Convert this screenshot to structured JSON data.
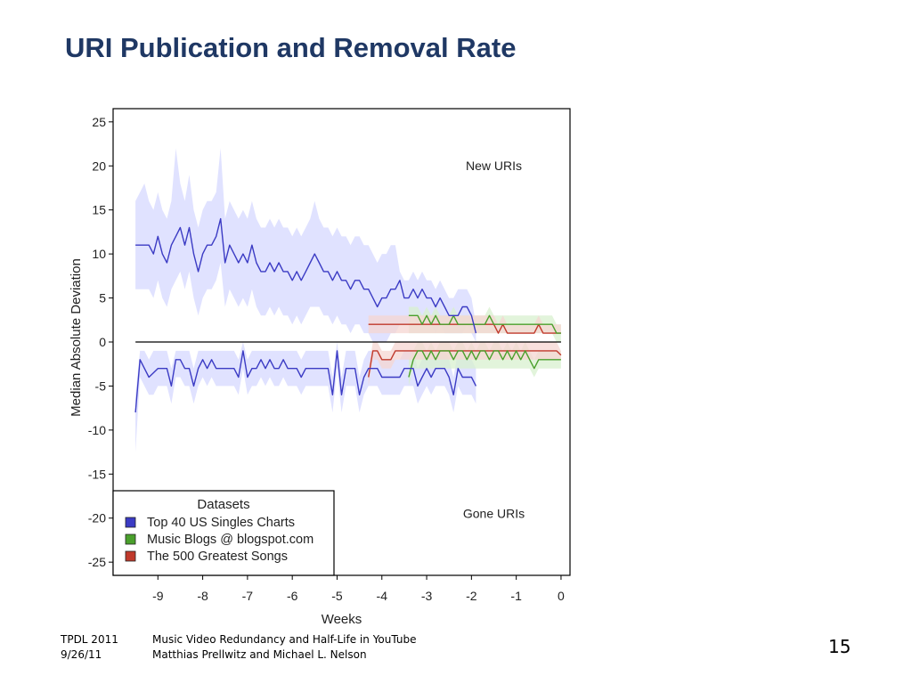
{
  "slide": {
    "title": "URI Publication and Removal Rate",
    "footer_left": [
      "TPDL 2011",
      "9/26/11"
    ],
    "footer_mid": [
      "Music Video Redundancy and Half-Life in YouTube",
      "Matthias Prellwitz and Michael L. Nelson"
    ],
    "page_number": "15"
  },
  "chart_data": {
    "type": "line",
    "title": "",
    "xlabel": "Weeks",
    "ylabel": "Median Absolute Deviation",
    "xlim": [
      -10,
      0.2
    ],
    "ylim": [
      -26.5,
      26.5
    ],
    "x_ticks": [
      -9,
      -8,
      -7,
      -6,
      -5,
      -4,
      -3,
      -2,
      -1,
      0
    ],
    "y_ticks": [
      -25,
      -20,
      -15,
      -10,
      -5,
      0,
      5,
      10,
      15,
      20,
      25
    ],
    "annotations": [
      "New URIs",
      "Gone URIs"
    ],
    "legend": {
      "title": "Datasets",
      "placement": "bottom-left"
    },
    "series": [
      {
        "name": "Top 40 US Singles Charts",
        "color": "#3b3bc4",
        "band_color": "#d6d8ff",
        "x_start": -9.5,
        "x_step": 0.1,
        "new": [
          11,
          11,
          11,
          11,
          10,
          12,
          10,
          9,
          11,
          12,
          13,
          11,
          13,
          10,
          8,
          10,
          11,
          11,
          12,
          14,
          9,
          11,
          10,
          9,
          10,
          9,
          11,
          9,
          8,
          8,
          9,
          8,
          9,
          8,
          8,
          7,
          8,
          7,
          8,
          9,
          10,
          9,
          8,
          8,
          7,
          8,
          7,
          7,
          6,
          7,
          7,
          6,
          6,
          5,
          4,
          5,
          5,
          6,
          6,
          7,
          5,
          5,
          6,
          5,
          6,
          5,
          5,
          4,
          5,
          4,
          3,
          3,
          3,
          4,
          4,
          3,
          1
        ],
        "new_hi": [
          16,
          17,
          18,
          16,
          15,
          17,
          15,
          14,
          16,
          22,
          18,
          16,
          19,
          15,
          13,
          15,
          16,
          16,
          17,
          22,
          14,
          16,
          15,
          14,
          15,
          14,
          16,
          14,
          13,
          13,
          14,
          13,
          14,
          13,
          13,
          12,
          13,
          12,
          13,
          14,
          16,
          14,
          13,
          13,
          12,
          13,
          12,
          12,
          11,
          12,
          12,
          11,
          11,
          10,
          9,
          10,
          10,
          11,
          11,
          8,
          7,
          7,
          8,
          7,
          8,
          7,
          7,
          6,
          7,
          6,
          5,
          5,
          6,
          6,
          6,
          5,
          2
        ],
        "new_lo": [
          6,
          6,
          6,
          6,
          5,
          7,
          5,
          4,
          6,
          7,
          8,
          6,
          8,
          5,
          3,
          5,
          6,
          6,
          7,
          9,
          4,
          6,
          5,
          4,
          5,
          4,
          6,
          4,
          3,
          3,
          4,
          3,
          4,
          3,
          3,
          2,
          3,
          2,
          3,
          4,
          4,
          4,
          3,
          3,
          2,
          3,
          2,
          2,
          1,
          2,
          2,
          1,
          1,
          0,
          0,
          0,
          0,
          1,
          1,
          2,
          2,
          2,
          3,
          2,
          3,
          2,
          2,
          1,
          2,
          1,
          1,
          1,
          1,
          1,
          2,
          1,
          0
        ],
        "gone": [
          -8,
          -2,
          -3,
          -4,
          -3.5,
          -3,
          -3,
          -3,
          -5,
          -2,
          -2,
          -3,
          -3,
          -5,
          -3,
          -2,
          -3,
          -2,
          -3,
          -3,
          -3,
          -3,
          -3,
          -4,
          -1,
          -4,
          -3,
          -3,
          -2,
          -3,
          -2,
          -3,
          -3,
          -2,
          -3,
          -3,
          -3,
          -4,
          -3,
          -3,
          -3,
          -3,
          -3,
          -3,
          -6,
          -1,
          -6,
          -3,
          -3,
          -3,
          -6,
          -4,
          -3,
          -3,
          -3,
          -4,
          -4,
          -4,
          -4,
          -4,
          -3,
          -3,
          -3,
          -5,
          -4,
          -3,
          -4,
          -3,
          -3,
          -3,
          -4,
          -6,
          -3,
          -4,
          -4,
          -4,
          -5
        ],
        "gone_hi": [
          -6,
          -1,
          -1,
          -2,
          -1,
          -1,
          -1,
          -1,
          -3,
          -1,
          -1,
          -1,
          -1,
          -3,
          -1,
          -1,
          -1,
          -1,
          -1,
          -1,
          -1,
          -1,
          -1,
          -2,
          0,
          -2,
          -1,
          -1,
          -1,
          -1,
          -1,
          -1,
          -1,
          -1,
          -1,
          -1,
          -1,
          -2,
          -1,
          -1,
          -1,
          -1,
          -1,
          -1,
          -4,
          0,
          -4,
          -1,
          -1,
          -1,
          -4,
          -2,
          -1,
          -1,
          -1,
          -2,
          -2,
          -2,
          -2,
          -2,
          -1,
          -1,
          -1,
          -3,
          -2,
          -1,
          -2,
          -1,
          -1,
          -1,
          -2,
          -4,
          -1,
          -2,
          -2,
          -2,
          -3
        ],
        "gone_lo": [
          -12.5,
          -4,
          -5,
          -6,
          -6,
          -5,
          -5,
          -5,
          -7,
          -4,
          -4,
          -5,
          -5,
          -7,
          -5,
          -4,
          -5,
          -4,
          -5,
          -5,
          -5,
          -5,
          -5,
          -6,
          -3,
          -6,
          -5,
          -5,
          -4,
          -5,
          -4,
          -5,
          -5,
          -4,
          -5,
          -5,
          -5,
          -6,
          -5,
          -5,
          -5,
          -5,
          -5,
          -5,
          -8,
          -3,
          -8,
          -5,
          -5,
          -5,
          -8,
          -6,
          -5,
          -5,
          -5,
          -6,
          -6,
          -6,
          -6,
          -6,
          -5,
          -5,
          -5,
          -7,
          -6,
          -5,
          -6,
          -5,
          -5,
          -5,
          -6,
          -8,
          -5,
          -6,
          -6,
          -6,
          -7
        ]
      },
      {
        "name": "Music Blogs @ blogspot.com",
        "color": "#4aa02c",
        "band_color": "#d8f0cf",
        "x_start": -3.4,
        "x_step": 0.1,
        "new": [
          3,
          3,
          3,
          2,
          3,
          2,
          3,
          2,
          2,
          2,
          3,
          2,
          2,
          2,
          2,
          2,
          2,
          2,
          3,
          2,
          2,
          2,
          2,
          2,
          2,
          2,
          2,
          2,
          2,
          2,
          2,
          2,
          2,
          1,
          1
        ],
        "new_hi": [
          4,
          4,
          4,
          3,
          4,
          3,
          4,
          3,
          3,
          3,
          4,
          3,
          3,
          3,
          3,
          3,
          3,
          3,
          4,
          3,
          3,
          3,
          3,
          3,
          3,
          3,
          3,
          3,
          3,
          3,
          3,
          3,
          3,
          2,
          2
        ],
        "new_lo": [
          1,
          1,
          1,
          1,
          1,
          1,
          1,
          1,
          1,
          1,
          1,
          1,
          1,
          1,
          1,
          1,
          1,
          1,
          1,
          1,
          1,
          1,
          1,
          1,
          1,
          1,
          1,
          1,
          1,
          1,
          1,
          1,
          1,
          0,
          0
        ],
        "gone": [
          -4,
          -2,
          -1,
          -1,
          -2,
          -1,
          -2,
          -1,
          -1,
          -1,
          -2,
          -1,
          -1,
          -2,
          -1,
          -2,
          -1,
          -1,
          -2,
          -1,
          -1,
          -2,
          -1,
          -2,
          -1,
          -2,
          -1,
          -2,
          -3,
          -2,
          -2,
          -2,
          -2,
          -2,
          -2
        ],
        "gone_hi": [
          -2,
          -1,
          0,
          0,
          -1,
          0,
          -1,
          0,
          0,
          0,
          -1,
          0,
          0,
          -1,
          0,
          -1,
          0,
          0,
          -1,
          0,
          0,
          -1,
          0,
          -1,
          0,
          -1,
          0,
          -1,
          -2,
          -1,
          -1,
          -1,
          -1,
          -1,
          -1
        ],
        "gone_lo": [
          -5,
          -3,
          -3,
          -3,
          -3,
          -3,
          -3,
          -3,
          -3,
          -3,
          -3,
          -3,
          -3,
          -3,
          -3,
          -3,
          -3,
          -3,
          -3,
          -3,
          -3,
          -3,
          -3,
          -3,
          -3,
          -3,
          -3,
          -3,
          -4,
          -3,
          -3,
          -3,
          -3,
          -3,
          -3
        ]
      },
      {
        "name": "The 500 Greatest Songs",
        "color": "#c0392b",
        "band_color": "#f6d5d1",
        "x_start": -4.3,
        "x_step": 0.1,
        "new": [
          2,
          2,
          2,
          2,
          2,
          2,
          2,
          2,
          2,
          2,
          2,
          2,
          2,
          2,
          2,
          2,
          2,
          2,
          2,
          2,
          2,
          2,
          2,
          2,
          2,
          2,
          2,
          2,
          2,
          1,
          2,
          1,
          1,
          1,
          1,
          1,
          1,
          1,
          2,
          1,
          1,
          1,
          1,
          1
        ],
        "new_hi": [
          3,
          3,
          3,
          3,
          3,
          3,
          3,
          3,
          3,
          3,
          3,
          3,
          3,
          3,
          3,
          3,
          3,
          3,
          3,
          3,
          3,
          3,
          3,
          3,
          3,
          3,
          3,
          3,
          3,
          2,
          3,
          2,
          2,
          2,
          2,
          2,
          2,
          2,
          3,
          2,
          2,
          2,
          2,
          2
        ],
        "new_lo": [
          1,
          1,
          1,
          1,
          1,
          1,
          1,
          1,
          1,
          1,
          1,
          1,
          1,
          1,
          1,
          1,
          1,
          1,
          1,
          1,
          1,
          1,
          1,
          1,
          1,
          1,
          1,
          1,
          1,
          1,
          1,
          1,
          1,
          1,
          1,
          1,
          1,
          1,
          1,
          1,
          1,
          1,
          1,
          1
        ],
        "gone": [
          -4,
          -1,
          -1,
          -2,
          -2,
          -2,
          -1,
          -1,
          -1,
          -1,
          -1,
          -1,
          -1,
          -1,
          -1,
          -1,
          -1,
          -1,
          -1,
          -1,
          -1,
          -1,
          -1,
          -1,
          -1,
          -1,
          -1,
          -1,
          -1,
          -1,
          -1,
          -1,
          -1,
          -1,
          -1,
          -1,
          -1,
          -1,
          -1,
          -1,
          -1,
          -1,
          -1,
          -1.5
        ],
        "gone_hi": [
          -3,
          0,
          0,
          -1,
          -1,
          -1,
          0,
          0,
          0,
          0,
          0,
          0,
          0,
          0,
          0,
          0,
          0,
          0,
          0,
          0,
          0,
          0,
          0,
          0,
          0,
          0,
          0,
          0,
          0,
          0,
          0,
          0,
          0,
          0,
          0,
          0,
          0,
          0,
          0,
          0,
          0,
          0,
          0,
          -1
        ],
        "gone_lo": [
          -5,
          -2,
          -2,
          -3,
          -3,
          -3,
          -2,
          -2,
          -2,
          -2,
          -2,
          -2,
          -2,
          -2,
          -2,
          -2,
          -2,
          -2,
          -2,
          -2,
          -2,
          -2,
          -2,
          -2,
          -2,
          -2,
          -2,
          -2,
          -2,
          -2,
          -2,
          -2,
          -2,
          -2,
          -2,
          -2,
          -2,
          -2,
          -2,
          -2,
          -2,
          -2,
          -2,
          -2
        ]
      }
    ]
  }
}
